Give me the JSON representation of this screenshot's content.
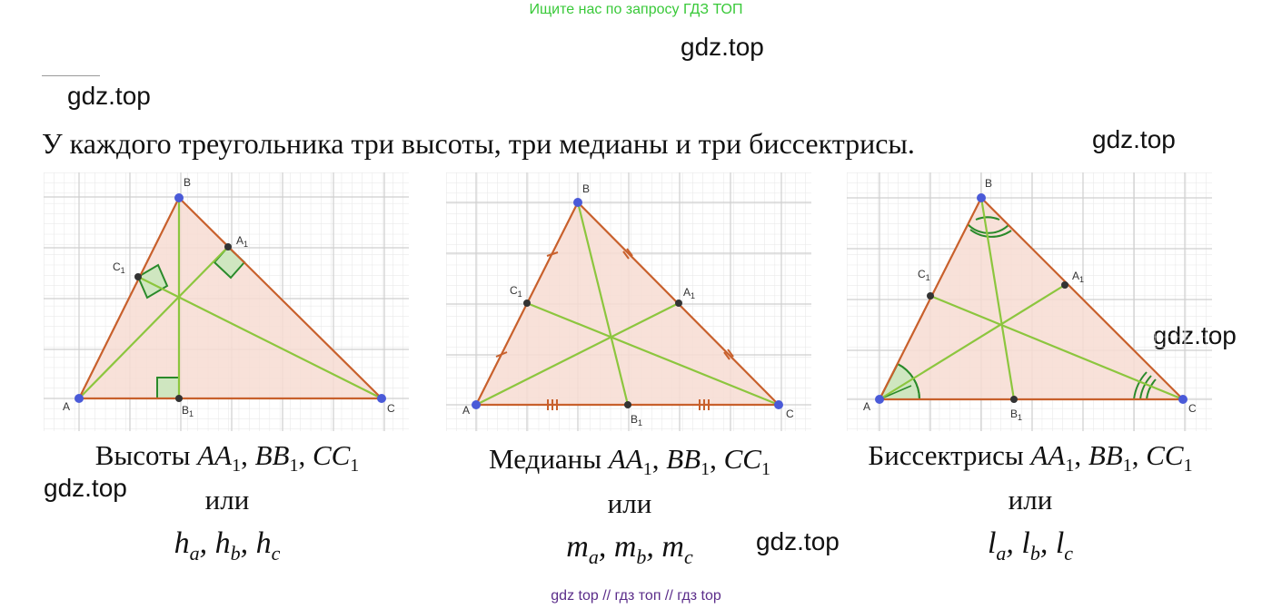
{
  "banner": "Ищите нас по запросу ГДЗ ТОП",
  "watermark": "gdz.top",
  "intro": "У каждого треугольника три высоты, три медианы и три биссектрисы.",
  "or": "или",
  "footer": "gdz top  //  гдз топ  //  гдз top",
  "vertex_labels": {
    "A": "A",
    "B": "B",
    "C": "C",
    "A1": "A",
    "B1": "B",
    "C1": "C",
    "sub1": "1"
  },
  "colors": {
    "grid": "#d9d9d9",
    "fill": "#f7dcd2",
    "side": "#c8602c",
    "cevian": "#8cc63e",
    "mark": "#2a8a2a",
    "point": "#4a5ad8",
    "dot": "#333333",
    "banner": "#39c939",
    "footer": "#5b2d8a"
  },
  "panels": [
    {
      "id": "altitudes",
      "caption_word": "Высоты",
      "segments": [
        "AA",
        "BB",
        "CC"
      ],
      "formula": [
        "h",
        "a",
        "h",
        "b",
        "h",
        "c"
      ]
    },
    {
      "id": "medians",
      "caption_word": "Медианы",
      "segments": [
        "AA",
        "BB",
        "CC"
      ],
      "formula": [
        "m",
        "a",
        "m",
        "b",
        "m",
        "c"
      ]
    },
    {
      "id": "bisectors",
      "caption_word": "Биссектрисы",
      "segments": [
        "AA",
        "BB",
        "CC"
      ],
      "formula": [
        "l",
        "a",
        "l",
        "b",
        "l",
        "c"
      ]
    }
  ]
}
